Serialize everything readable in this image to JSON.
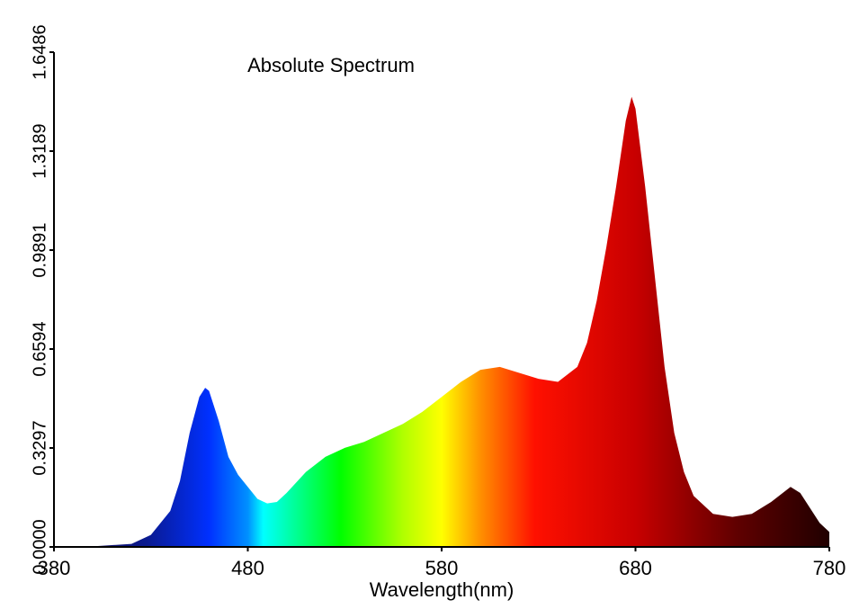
{
  "chart_data": {
    "type": "area",
    "title": "Absolute Spectrum",
    "x_label": "Wavelength(nm)",
    "x": [
      380,
      400,
      420,
      430,
      440,
      445,
      450,
      455,
      458,
      460,
      465,
      470,
      475,
      480,
      485,
      490,
      495,
      500,
      510,
      520,
      530,
      540,
      550,
      560,
      570,
      580,
      590,
      600,
      610,
      620,
      630,
      640,
      650,
      655,
      660,
      665,
      670,
      675,
      678,
      680,
      685,
      690,
      695,
      700,
      705,
      710,
      720,
      730,
      740,
      750,
      760,
      765,
      770,
      775,
      780
    ],
    "values": [
      0,
      0.002,
      0.01,
      0.04,
      0.12,
      0.22,
      0.38,
      0.5,
      0.53,
      0.52,
      0.42,
      0.3,
      0.24,
      0.2,
      0.16,
      0.145,
      0.15,
      0.18,
      0.25,
      0.3,
      0.33,
      0.35,
      0.38,
      0.41,
      0.45,
      0.5,
      0.55,
      0.59,
      0.6,
      0.58,
      0.56,
      0.55,
      0.6,
      0.68,
      0.82,
      1.0,
      1.2,
      1.42,
      1.5,
      1.46,
      1.2,
      0.9,
      0.6,
      0.38,
      0.25,
      0.17,
      0.11,
      0.1,
      0.11,
      0.15,
      0.2,
      0.18,
      0.13,
      0.08,
      0.05
    ],
    "xlim": [
      380,
      780
    ],
    "xticks": [
      380,
      480,
      580,
      680,
      780
    ],
    "ylim": [
      0,
      1.6486
    ],
    "yticks": [
      {
        "value": 0,
        "label": "0.0000"
      },
      0.3297,
      0.6594,
      0.9891,
      1.3189,
      1.6486
    ]
  }
}
